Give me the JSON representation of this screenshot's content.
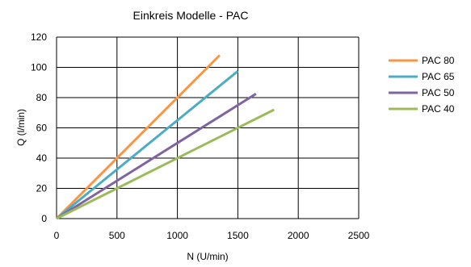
{
  "chart_data": {
    "type": "line",
    "title": "Einkreis Modelle - PAC",
    "xlabel": "N (U/min)",
    "ylabel": "Q (l/min)",
    "xlim": [
      0,
      2500
    ],
    "ylim": [
      0,
      120
    ],
    "xticks": [
      0,
      500,
      1000,
      1500,
      2000,
      2500
    ],
    "yticks": [
      0,
      20,
      40,
      60,
      80,
      100,
      120
    ],
    "grid": true,
    "legend_position": "right",
    "series": [
      {
        "name": "PAC 80",
        "color": "#F79646",
        "x": [
          0,
          1350
        ],
        "y": [
          0,
          108
        ]
      },
      {
        "name": "PAC 65",
        "color": "#4BACC6",
        "x": [
          0,
          1500
        ],
        "y": [
          0,
          97.5
        ]
      },
      {
        "name": "PAC 50",
        "color": "#8064A2",
        "x": [
          0,
          1650
        ],
        "y": [
          0,
          82.5
        ]
      },
      {
        "name": "PAC 40",
        "color": "#9BBB59",
        "x": [
          0,
          1800
        ],
        "y": [
          0,
          72
        ]
      }
    ]
  }
}
